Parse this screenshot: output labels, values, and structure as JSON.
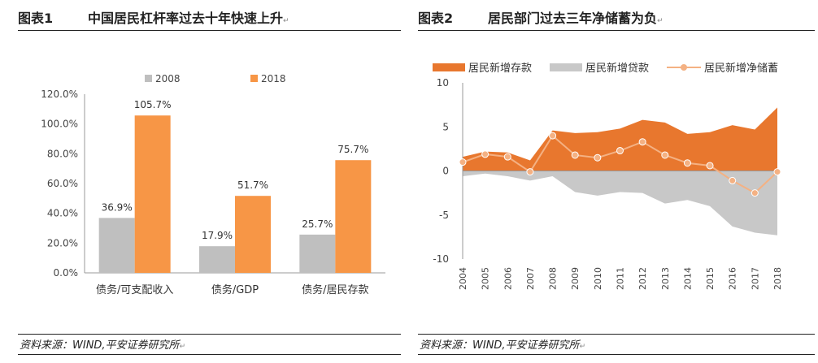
{
  "left": {
    "fig_label": "图表1",
    "title": "中国居民杠杆率过去十年快速上升",
    "source": "资料来源：WIND,平安证券研究所",
    "chart_data": {
      "type": "bar",
      "title": "",
      "xlabel": "",
      "ylabel": "",
      "categories": [
        "债务/可支配收入",
        "债务/GDP",
        "债务/居民存款"
      ],
      "series": [
        {
          "name": "2008",
          "values": [
            36.9,
            17.9,
            25.7
          ],
          "labels": [
            "36.9%",
            "17.9%",
            "25.7%"
          ],
          "color": "#bfbfbf"
        },
        {
          "name": "2018",
          "values": [
            105.7,
            51.7,
            75.7
          ],
          "labels": [
            "105.7%",
            "51.7%",
            "75.7%"
          ],
          "color": "#f79646"
        }
      ],
      "ylim": [
        0,
        120
      ],
      "yticks": [
        0,
        20,
        40,
        60,
        80,
        100,
        120
      ],
      "ytick_labels": [
        "0.0%",
        "20.0%",
        "40.0%",
        "60.0%",
        "80.0%",
        "100.0%",
        "120.0%"
      ],
      "grid": false,
      "legend": "top"
    }
  },
  "right": {
    "fig_label": "图表2",
    "title": "居民部门过去三年净储蓄为负",
    "source": "资料来源：WIND,平安证券研究所",
    "chart_data": {
      "type": "area",
      "title": "",
      "xlabel": "",
      "ylabel": "",
      "x": [
        "2004",
        "2005",
        "2006",
        "2007",
        "2008",
        "2009",
        "2010",
        "2011",
        "2012",
        "2013",
        "2014",
        "2015",
        "2016",
        "2017",
        "2018"
      ],
      "series": [
        {
          "name": "居民新增存款",
          "kind": "area",
          "color": "#e8772e",
          "values": [
            1.6,
            2.2,
            2.1,
            1.2,
            4.6,
            4.3,
            4.4,
            4.8,
            5.8,
            5.5,
            4.2,
            4.4,
            5.2,
            4.7,
            7.2
          ]
        },
        {
          "name": "居民新增贷款",
          "kind": "area",
          "color": "#c8c8c8",
          "values": [
            -0.6,
            -0.3,
            -0.6,
            -1.1,
            -0.6,
            -2.4,
            -2.8,
            -2.4,
            -2.5,
            -3.7,
            -3.3,
            -4.0,
            -6.3,
            -7.0,
            -7.3
          ]
        },
        {
          "name": "居民新增净储蓄",
          "kind": "line",
          "color": "#f4b183",
          "values": [
            1.0,
            1.9,
            1.6,
            -0.1,
            4.0,
            1.8,
            1.5,
            2.3,
            3.3,
            1.8,
            0.9,
            0.6,
            -1.1,
            -2.5,
            -0.1
          ]
        }
      ],
      "ylim": [
        -10,
        10
      ],
      "yticks": [
        -10,
        -5,
        0,
        5,
        10
      ],
      "ytick_labels": [
        "-10",
        "-5",
        "0",
        "5",
        "10"
      ],
      "grid": false,
      "legend": "top"
    }
  }
}
